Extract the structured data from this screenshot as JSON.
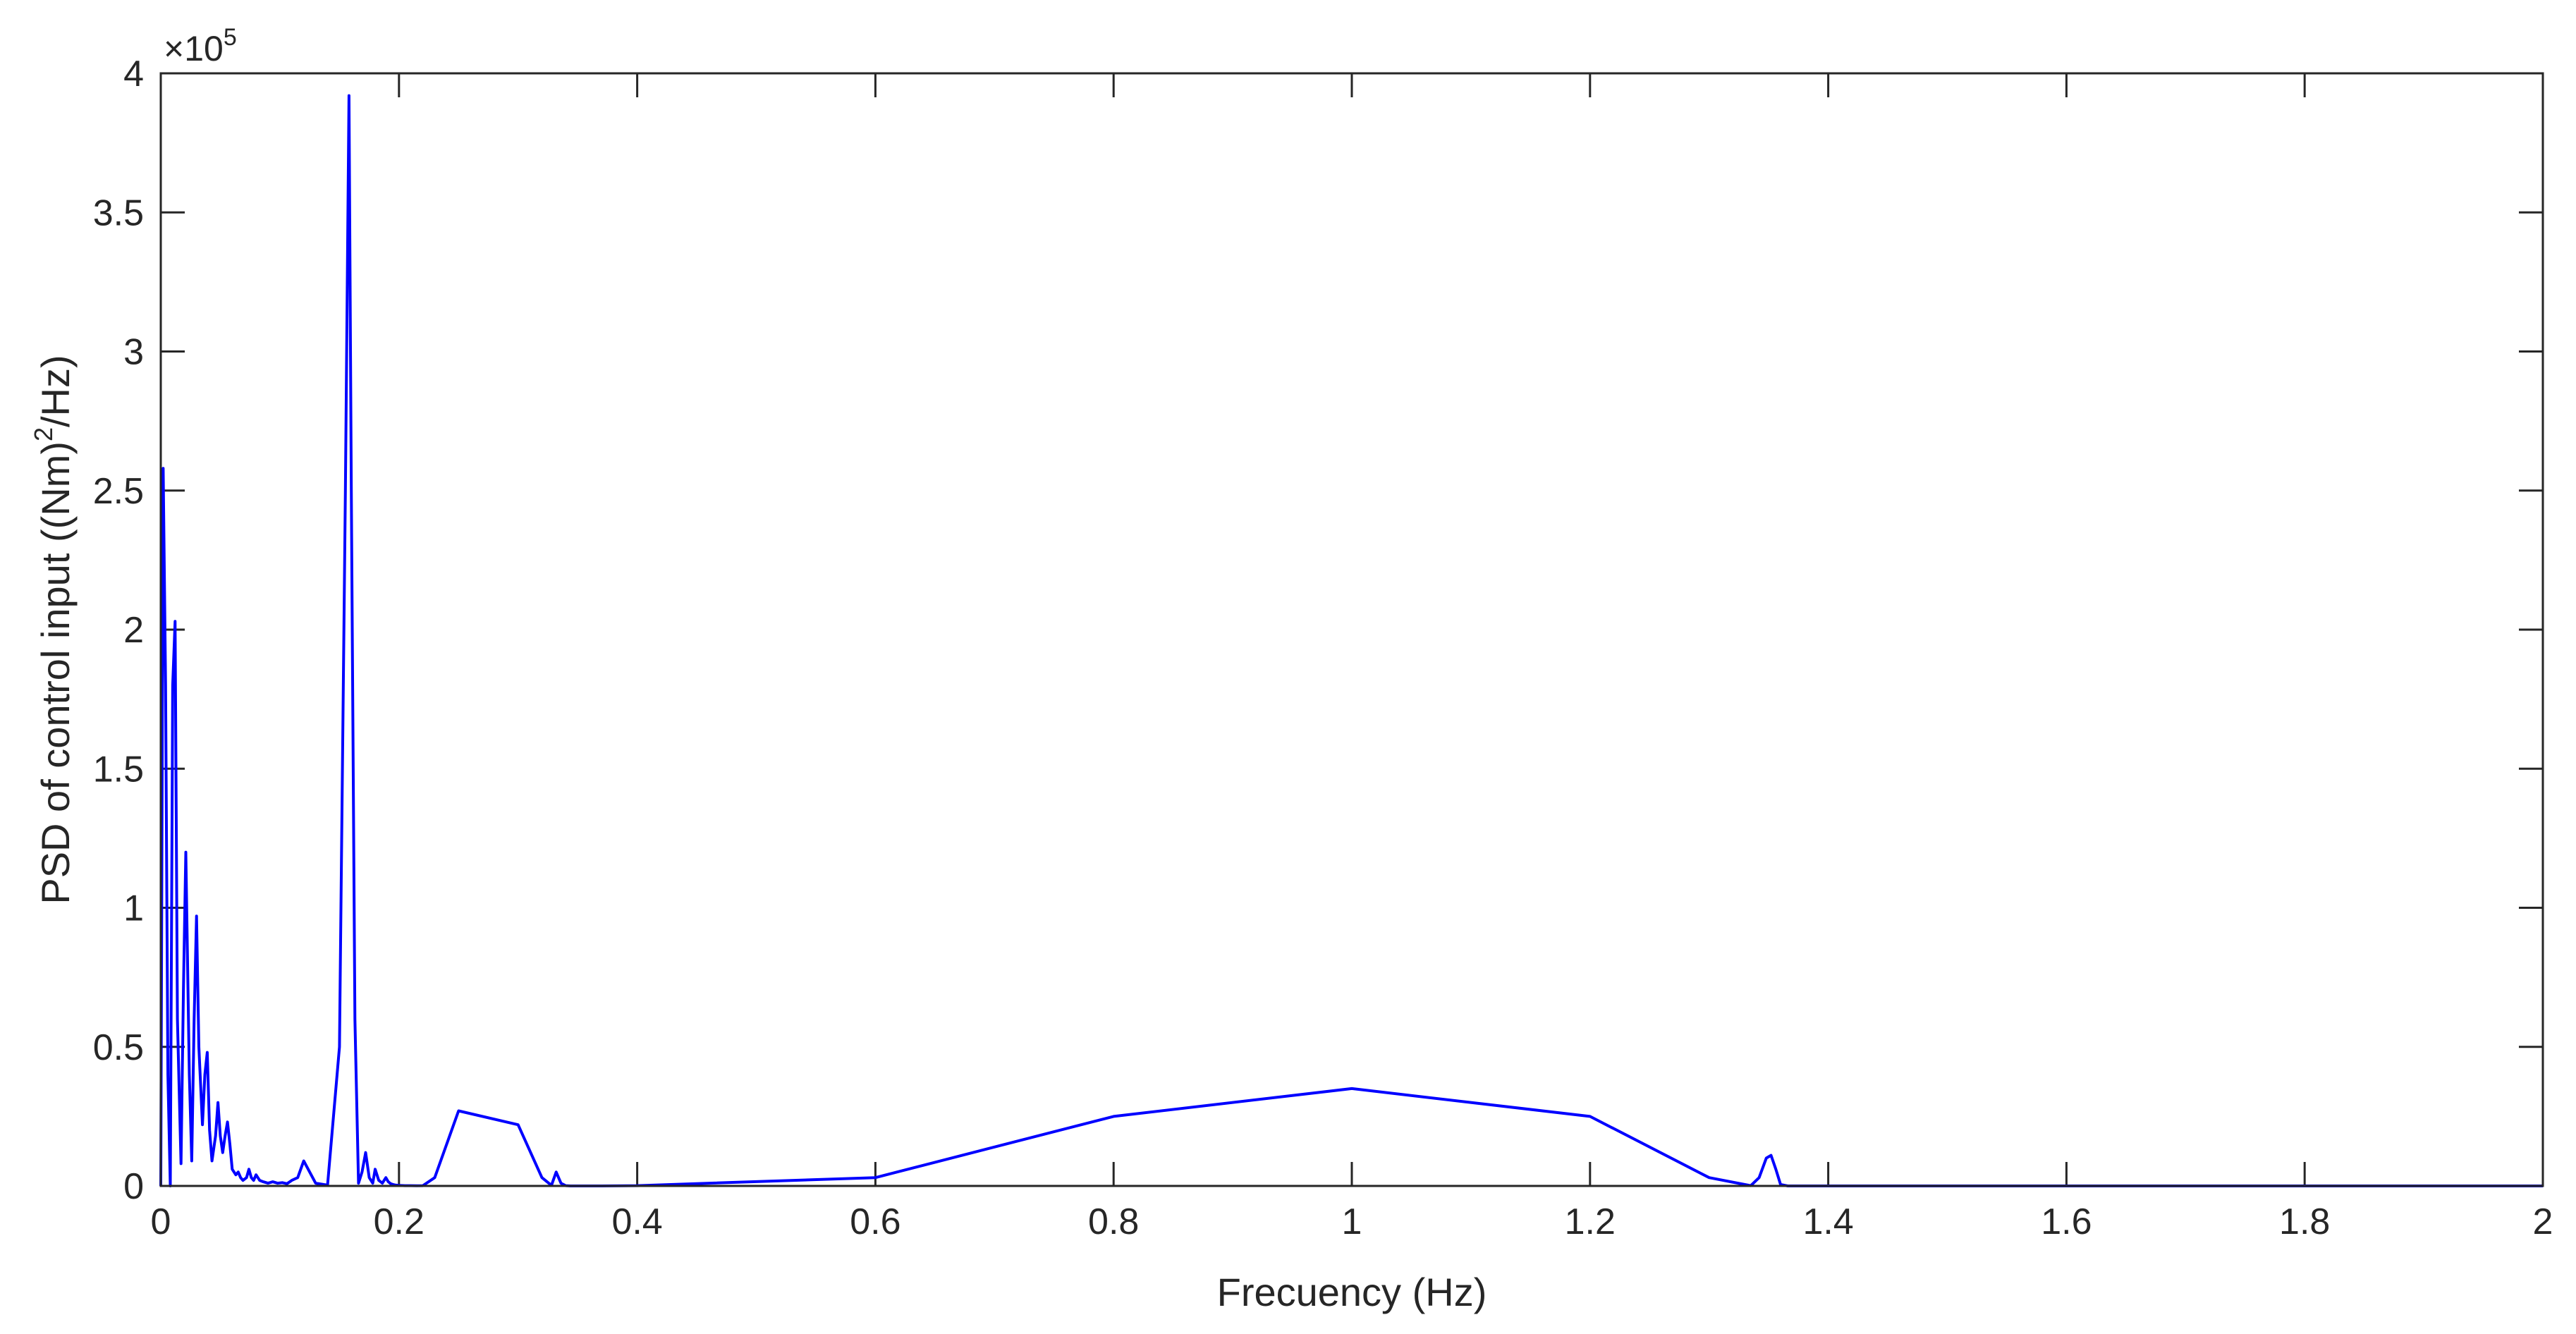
{
  "chart_data": {
    "type": "line",
    "xlabel": "Frecuency (Hz)",
    "ylabel_main": "PSD of control input ((Nm)",
    "ylabel_sup": "2",
    "ylabel_tail": "/Hz)",
    "y_exponent_prefix": "×10",
    "y_exponent_power": "5",
    "xlim": [
      0,
      2
    ],
    "ylim": [
      0,
      400000
    ],
    "x_ticks": [
      0,
      0.2,
      0.4,
      0.6,
      0.8,
      1,
      1.2,
      1.4,
      1.6,
      1.8,
      2
    ],
    "x_tick_labels": [
      "0",
      "0.2",
      "0.4",
      "0.6",
      "0.8",
      "1",
      "1.2",
      "1.4",
      "1.6",
      "1.8",
      "2"
    ],
    "y_ticks": [
      0,
      50000,
      100000,
      150000,
      200000,
      250000,
      300000,
      350000,
      400000
    ],
    "y_tick_labels": [
      "0",
      "0.5",
      "1",
      "1.5",
      "2",
      "2.5",
      "3",
      "3.5",
      "4"
    ],
    "grid": false,
    "line_color": "#0000ff",
    "series": [
      {
        "x": [
          0,
          0.002,
          0.004,
          0.006,
          0.008,
          0.01,
          0.012,
          0.014,
          0.017,
          0.019,
          0.021,
          0.024,
          0.026,
          0.028,
          0.03,
          0.032,
          0.035,
          0.037,
          0.039,
          0.041,
          0.043,
          0.046,
          0.048,
          0.05,
          0.052,
          0.054,
          0.056,
          0.058,
          0.06,
          0.063,
          0.065,
          0.067,
          0.069,
          0.072,
          0.074,
          0.076,
          0.078,
          0.08,
          0.083,
          0.086,
          0.09,
          0.094,
          0.098,
          0.102,
          0.106,
          0.11,
          0.115,
          0.12,
          0.13,
          0.14,
          0.15,
          0.155,
          0.158,
          0.16,
          0.163,
          0.166,
          0.169,
          0.172,
          0.175,
          0.178,
          0.18,
          0.183,
          0.186,
          0.189,
          0.191,
          0.193,
          0.195,
          0.197,
          0.2,
          0.205,
          0.21,
          0.215,
          0.22,
          0.23,
          0.25,
          0.3,
          0.32,
          0.328,
          0.332,
          0.336,
          0.34,
          0.344,
          0.348,
          0.352,
          0.355,
          0.358,
          0.362,
          0.37,
          0.4,
          0.6,
          0.8,
          1,
          1.2,
          1.3,
          1.335,
          1.342,
          1.348,
          1.352,
          1.356,
          1.36,
          1.366,
          1.372,
          1.38,
          1.39,
          1.398,
          1.403,
          1.408,
          1.413,
          1.418,
          1.425,
          1.44,
          1.6,
          1.8,
          2
        ],
        "y": [
          0,
          258000,
          180000,
          40000,
          0,
          180000,
          203000,
          60000,
          8000,
          70000,
          120000,
          40000,
          9000,
          60000,
          97000,
          50000,
          22000,
          40000,
          48000,
          20000,
          9000,
          18000,
          30000,
          18000,
          12000,
          18000,
          23000,
          15000,
          6000,
          4000,
          5000,
          3000,
          2000,
          3000,
          6000,
          3000,
          2000,
          4000,
          2000,
          1500,
          1000,
          1500,
          1000,
          1200,
          800,
          2000,
          3000,
          9000,
          1000,
          300,
          50000,
          250000,
          392000,
          250000,
          60000,
          1000,
          5000,
          12000,
          3000,
          1000,
          6000,
          2000,
          1000,
          3000,
          1500,
          800,
          500,
          300,
          200,
          100,
          100,
          50,
          100,
          3000,
          27000,
          22000,
          3000,
          200,
          5000,
          1000,
          100,
          0,
          0,
          0,
          0,
          0,
          0,
          0,
          100,
          3000,
          25000,
          35000,
          25000,
          3000,
          100,
          3000,
          10000,
          11000,
          6000,
          500,
          0,
          0,
          0,
          0,
          0,
          0,
          0,
          0,
          0,
          0,
          0,
          0,
          0,
          0
        ]
      }
    ]
  }
}
